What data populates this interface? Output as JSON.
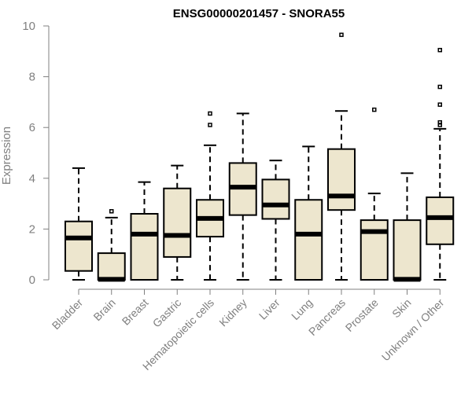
{
  "chart_data": {
    "type": "boxplot",
    "title": "ENSG00000201457 - SNORA55",
    "ylabel": "Expression",
    "xlabel": "",
    "ylim": [
      0,
      10
    ],
    "yticks": [
      0,
      2,
      4,
      6,
      8,
      10
    ],
    "box_color": "#EDE6CE",
    "categories": [
      "Bladder",
      "Brain",
      "Breast",
      "Gastric",
      "Hematopoietic cells",
      "Kidney",
      "Liver",
      "Lung",
      "Pancreas",
      "Prostate",
      "Skin",
      "Unknown / Other"
    ],
    "boxes": [
      {
        "min": 0,
        "q1": 0.35,
        "median": 1.65,
        "q3": 2.3,
        "max": 4.4,
        "outliers": []
      },
      {
        "min": 0,
        "q1": 0,
        "median": 0.02,
        "q3": 1.05,
        "max": 2.45,
        "outliers": [
          2.7
        ]
      },
      {
        "min": 0,
        "q1": 0,
        "median": 1.8,
        "q3": 2.6,
        "max": 3.85,
        "outliers": []
      },
      {
        "min": 0,
        "q1": 0.9,
        "median": 1.75,
        "q3": 3.6,
        "max": 4.5,
        "outliers": []
      },
      {
        "min": 0,
        "q1": 1.7,
        "median": 2.42,
        "q3": 3.15,
        "max": 5.3,
        "outliers": [
          6.1,
          6.55
        ]
      },
      {
        "min": 0,
        "q1": 2.55,
        "median": 3.65,
        "q3": 4.6,
        "max": 6.55,
        "outliers": []
      },
      {
        "min": 0,
        "q1": 2.4,
        "median": 2.95,
        "q3": 3.95,
        "max": 4.7,
        "outliers": []
      },
      {
        "min": 0,
        "q1": 0,
        "median": 1.8,
        "q3": 3.15,
        "max": 5.25,
        "outliers": []
      },
      {
        "min": 0,
        "q1": 2.75,
        "median": 3.3,
        "q3": 5.15,
        "max": 6.65,
        "outliers": [
          9.65
        ]
      },
      {
        "min": 0,
        "q1": 0,
        "median": 1.9,
        "q3": 2.35,
        "max": 3.4,
        "outliers": [
          6.7
        ]
      },
      {
        "min": 0,
        "q1": 0,
        "median": 0.02,
        "q3": 2.35,
        "max": 4.2,
        "outliers": []
      },
      {
        "min": 0,
        "q1": 1.4,
        "median": 2.45,
        "q3": 3.25,
        "max": 5.95,
        "outliers": [
          6.1,
          6.2,
          6.9,
          7.6,
          9.05
        ]
      }
    ]
  }
}
